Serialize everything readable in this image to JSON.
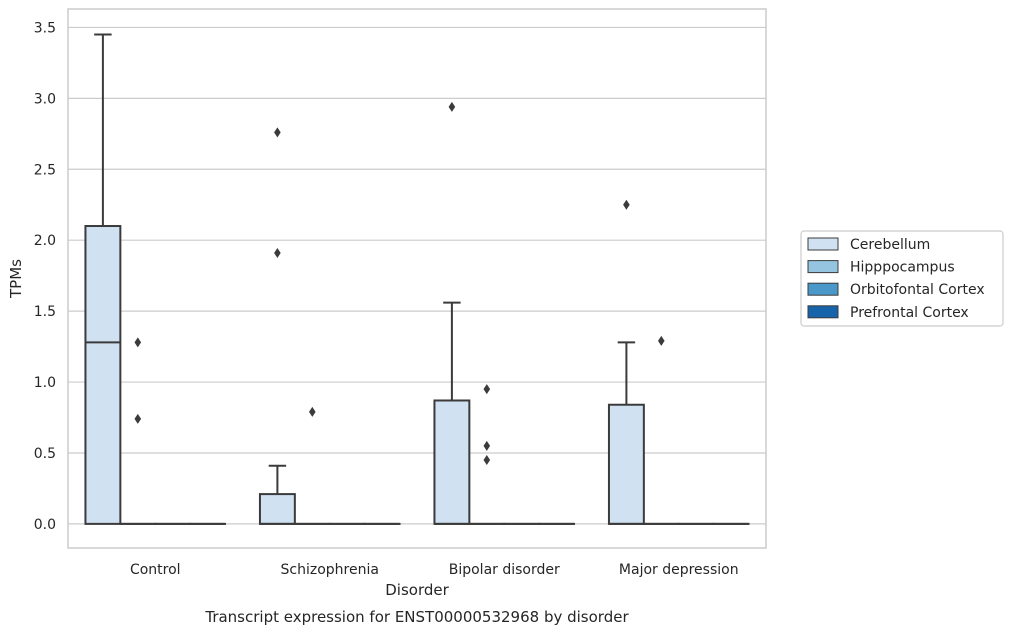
{
  "chart_data": {
    "type": "box",
    "title": "",
    "caption": "Transcript expression for ENST00000532968 by disorder",
    "xlabel": "Disorder",
    "ylabel": "TPMs",
    "ylim": [
      -0.17,
      3.63
    ],
    "yticks": [
      "0.0",
      "0.5",
      "1.0",
      "1.5",
      "2.0",
      "2.5",
      "3.0",
      "3.5"
    ],
    "ytick_values": [
      0,
      0.5,
      1.0,
      1.5,
      2.0,
      2.5,
      3.0,
      3.5
    ],
    "categories": [
      "Control",
      "Schizophrenia",
      "Bipolar disorder",
      "Major depression"
    ],
    "grid": true,
    "legend_position": "right",
    "series": [
      {
        "name": "Cerebellum",
        "color": "#d0e1f2",
        "boxes": [
          {
            "whislo": 0,
            "q1": 0,
            "med": 1.28,
            "q3": 2.1,
            "whishi": 3.45,
            "fliers": []
          },
          {
            "whislo": 0,
            "q1": 0,
            "med": 0,
            "q3": 0.21,
            "whishi": 0.41,
            "fliers": [
              1.91,
              2.76
            ]
          },
          {
            "whislo": 0,
            "q1": 0,
            "med": 0,
            "q3": 0.87,
            "whishi": 1.56,
            "fliers": [
              2.94
            ]
          },
          {
            "whislo": 0,
            "q1": 0,
            "med": 0,
            "q3": 0.84,
            "whishi": 1.28,
            "fliers": [
              2.25
            ]
          }
        ]
      },
      {
        "name": "Hipppocampus",
        "color": "#94c4df",
        "boxes": [
          {
            "whislo": 0,
            "q1": 0,
            "med": 0,
            "q3": 0,
            "whishi": 0,
            "fliers": [
              0.74,
              1.28
            ]
          },
          {
            "whislo": 0,
            "q1": 0,
            "med": 0,
            "q3": 0,
            "whishi": 0,
            "fliers": [
              0.79
            ]
          },
          {
            "whislo": 0,
            "q1": 0,
            "med": 0,
            "q3": 0,
            "whishi": 0,
            "fliers": [
              0.45,
              0.55,
              0.95
            ]
          },
          {
            "whislo": 0,
            "q1": 0,
            "med": 0,
            "q3": 0,
            "whishi": 0,
            "fliers": [
              1.29
            ]
          }
        ]
      },
      {
        "name": "Orbitofontal Cortex",
        "color": "#4a98c9",
        "boxes": [
          {
            "whislo": 0,
            "q1": 0,
            "med": 0,
            "q3": 0,
            "whishi": 0,
            "fliers": []
          },
          {
            "whislo": 0,
            "q1": 0,
            "med": 0,
            "q3": 0,
            "whishi": 0,
            "fliers": []
          },
          {
            "whislo": 0,
            "q1": 0,
            "med": 0,
            "q3": 0,
            "whishi": 0,
            "fliers": []
          },
          {
            "whislo": 0,
            "q1": 0,
            "med": 0,
            "q3": 0,
            "whishi": 0,
            "fliers": []
          }
        ]
      },
      {
        "name": "Prefrontal Cortex",
        "color": "#1764ab",
        "boxes": [
          {
            "whislo": 0,
            "q1": 0,
            "med": 0,
            "q3": 0,
            "whishi": 0,
            "fliers": []
          },
          {
            "whislo": 0,
            "q1": 0,
            "med": 0,
            "q3": 0,
            "whishi": 0,
            "fliers": []
          },
          {
            "whislo": 0,
            "q1": 0,
            "med": 0,
            "q3": 0,
            "whishi": 0,
            "fliers": []
          },
          {
            "whislo": 0,
            "q1": 0,
            "med": 0,
            "q3": 0,
            "whishi": 0,
            "fliers": []
          }
        ]
      }
    ],
    "colors": {
      "line": "#3b3b3b",
      "grid": "#cccccc",
      "frame": "#cccccc",
      "text": "#262626"
    }
  }
}
